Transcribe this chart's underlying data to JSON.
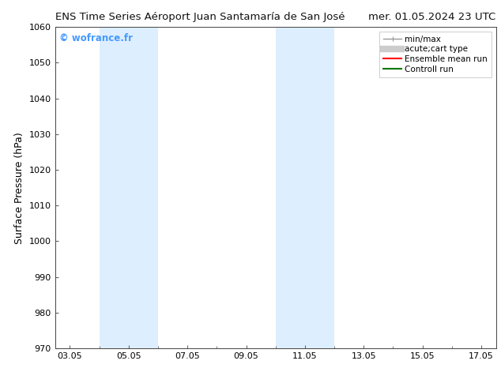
{
  "title_left": "ENS Time Series Aéroport Juan Santamaría de San José",
  "title_right": "mer. 01.05.2024 23 UTC",
  "ylabel": "Surface Pressure (hPa)",
  "ylim": [
    970,
    1060
  ],
  "yticks": [
    970,
    980,
    990,
    1000,
    1010,
    1020,
    1030,
    1040,
    1050,
    1060
  ],
  "xtick_labels": [
    "03.05",
    "05.05",
    "07.05",
    "09.05",
    "11.05",
    "13.05",
    "15.05",
    "17.05"
  ],
  "xtick_positions": [
    0,
    2,
    4,
    6,
    8,
    10,
    12,
    14
  ],
  "xlim": [
    -0.5,
    14.5
  ],
  "shaded_bands": [
    {
      "x_start": 1.0,
      "x_end": 3.0
    },
    {
      "x_start": 7.0,
      "x_end": 9.0
    }
  ],
  "watermark": "© wofrance.fr",
  "watermark_color": "#4499ff",
  "bg_color": "#ffffff",
  "plot_bg_color": "#ffffff",
  "shade_color": "#ddeeff",
  "legend_items": [
    {
      "label": "min/max",
      "color": "#999999",
      "lw": 1,
      "style": "errorbar"
    },
    {
      "label": "acute;cart type",
      "color": "#cccccc",
      "lw": 6,
      "style": "line"
    },
    {
      "label": "Ensemble mean run",
      "color": "#ff0000",
      "lw": 1.5,
      "style": "line"
    },
    {
      "label": "Controll run",
      "color": "#007700",
      "lw": 1.5,
      "style": "line"
    }
  ],
  "title_fontsize": 9.5,
  "tick_fontsize": 8,
  "ylabel_fontsize": 9,
  "watermark_fontsize": 8.5,
  "legend_fontsize": 7.5
}
